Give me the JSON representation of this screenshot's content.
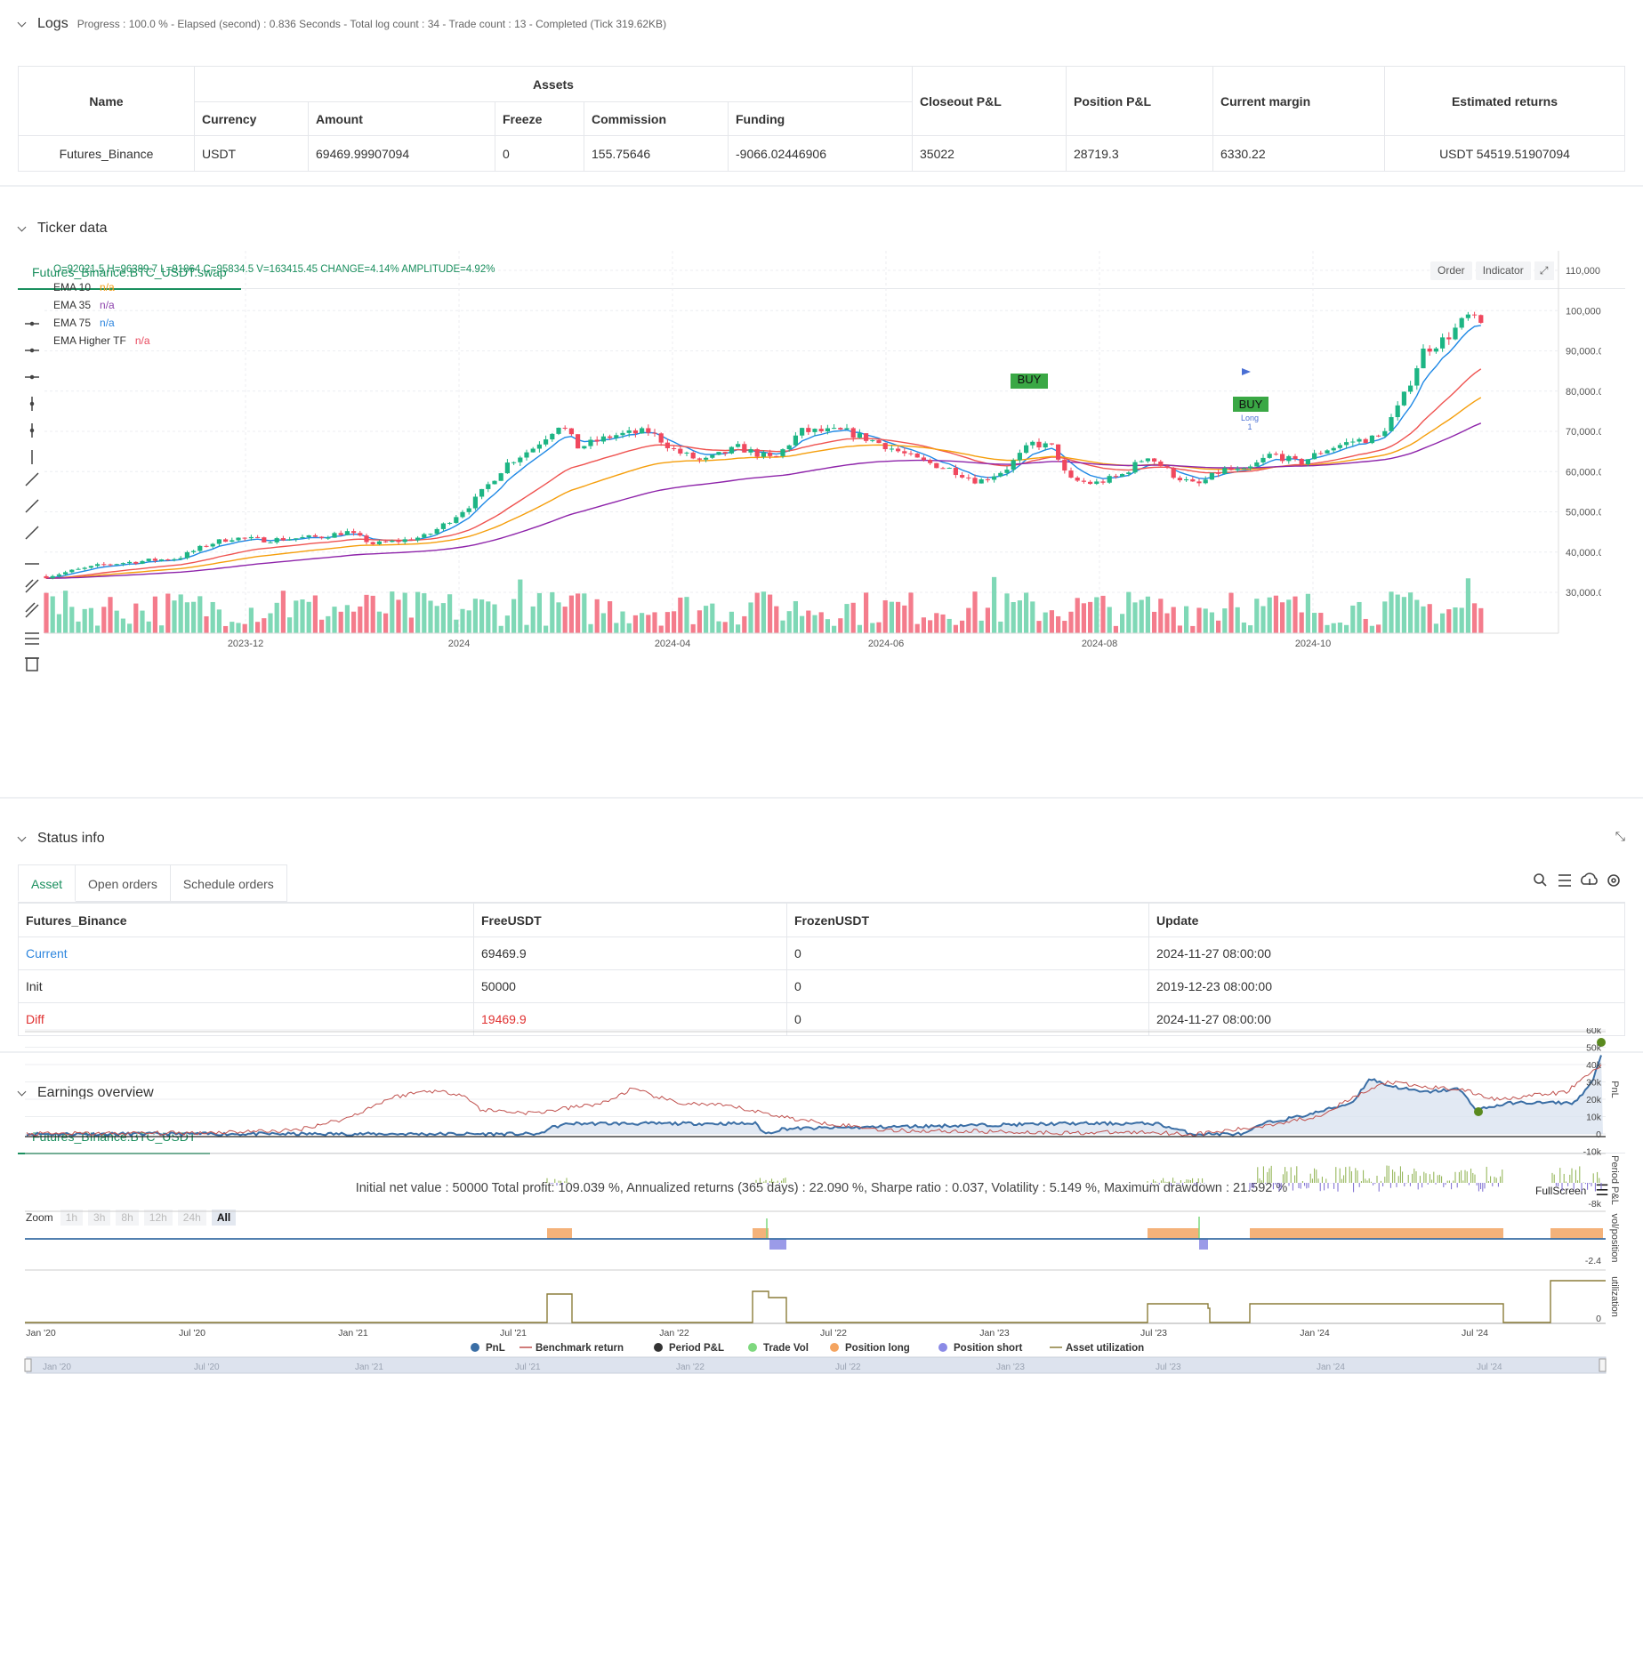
{
  "logs": {
    "title": "Logs",
    "summary": "Progress : 100.0 % - Elapsed (second) : 0.836  Seconds - Total log count : 34 - Trade count : 13 - Completed (Tick 319.62KB)",
    "table": {
      "name_header": "Name",
      "assets_header": "Assets",
      "sub_headers": [
        "Currency",
        "Amount",
        "Freeze",
        "Commission",
        "Funding"
      ],
      "right_headers": [
        "Closeout P&L",
        "Position P&L",
        "Current margin",
        "Estimated returns"
      ],
      "row": [
        "Futures_Binance",
        "USDT",
        "69469.99907094",
        "0",
        "155.75646",
        "-9066.02446906",
        "35022",
        "28719.3",
        "6330.22",
        "USDT 54519.51907094"
      ]
    }
  },
  "ticker": {
    "title": "Ticker data",
    "tab": "Futures_Binance.BTC_USDT.swap",
    "ohlc_line": "O=92021.5 H=96389.7 L=91864 C=95834.5 V=163415.45 CHANGE=4.14% AMPLITUDE=4.92%",
    "legend": [
      {
        "name": "EMA 10",
        "value": "n/a",
        "color": "#f39c12"
      },
      {
        "name": "EMA 35",
        "value": "n/a",
        "color": "#8e44ad"
      },
      {
        "name": "EMA 75",
        "value": "n/a",
        "color": "#2e86de"
      },
      {
        "name": "EMA Higher TF",
        "value": "n/a",
        "color": "#e84a5f"
      }
    ],
    "buttons": {
      "order": "Order",
      "indicator": "Indicator"
    },
    "y_ticks": [
      "110,000.00",
      "100,000.00",
      "90,000.00",
      "80,000.00",
      "70,000.00",
      "60,000.00",
      "50,000.00",
      "40,000.00",
      "30,000.00"
    ],
    "x_ticks": [
      "2023-12",
      "2024",
      "2024-04",
      "2024-06",
      "2024-08",
      "2024-10"
    ],
    "markers": {
      "buy1": "BUY",
      "buy2": "BUY",
      "long": "Long",
      "long_n": "1"
    },
    "colors": {
      "up": "#26a69a",
      "down": "#ef5350"
    }
  },
  "status": {
    "title": "Status info",
    "tabs": [
      "Asset",
      "Open orders",
      "Schedule orders"
    ],
    "headers": [
      "Futures_Binance",
      "FreeUSDT",
      "FrozenUSDT",
      "Update"
    ],
    "rows": [
      [
        "Current",
        "69469.9",
        "0",
        "2024-11-27 08:00:00"
      ],
      [
        "Init",
        "50000",
        "0",
        "2019-12-23 08:00:00"
      ],
      [
        "Diff",
        "19469.9",
        "0",
        "2024-11-27 08:00:00"
      ]
    ]
  },
  "earnings": {
    "title": "Earnings overview",
    "tab": "Futures_BInance.BTC_USDT",
    "summary": "Initial net value : 50000  Total profit: 109.039 %, Annualized returns (365 days) : 22.090 %, Sharpe ratio : 0.037, Volatility : 5.149 %, Maximum drawdown : 21.592 %",
    "fullscreen": "FullScreen",
    "zoom_label": "Zoom",
    "zoom_options": [
      "1h",
      "3h",
      "8h",
      "12h",
      "24h",
      "All"
    ],
    "pnl_ticks": [
      "60k",
      "50k",
      "40k",
      "30k",
      "20k",
      "10k",
      "0",
      "-10k"
    ],
    "period_tick": "-8k",
    "vol_tick": "-2.4",
    "util_tick": "0",
    "axis_labels": [
      "PnL",
      "Period P&L",
      "vol/position",
      "utilization"
    ],
    "x_ticks": [
      "Jan '20",
      "Jul '20",
      "Jan '21",
      "Jul '21",
      "Jan '22",
      "Jul '22",
      "Jan '23",
      "Jul '23",
      "Jan '24",
      "Jul '24"
    ],
    "legend": [
      {
        "name": "PnL",
        "color": "#3a6ea5"
      },
      {
        "name": "Benchmark return",
        "color": "#c0504d"
      },
      {
        "name": "Period P&L",
        "color": "#333333"
      },
      {
        "name": "Trade Vol",
        "color": "#7ed87e"
      },
      {
        "name": "Position long",
        "color": "#f4a460"
      },
      {
        "name": "Position short",
        "color": "#8a8ae6"
      },
      {
        "name": "Asset utilization",
        "color": "#8b7d3a"
      }
    ]
  }
}
